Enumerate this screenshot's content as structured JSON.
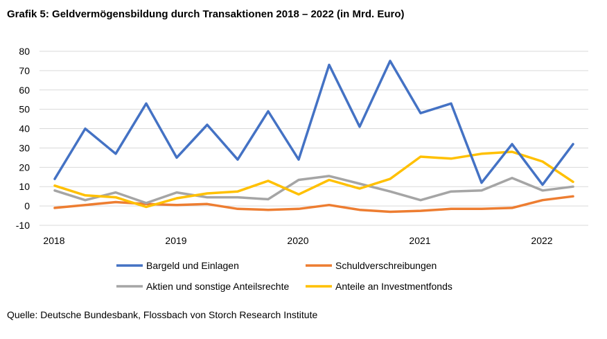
{
  "title": "Grafik 5: Geldvermögensbildung durch Transaktionen 2018 – 2022 (in Mrd. Euro)",
  "source": "Quelle: Deutsche Bundesbank, Flossbach von Storch Research Institute",
  "chart_data": {
    "type": "line",
    "title": "Grafik 5: Geldvermögensbildung durch Transaktionen 2018 – 2022 (in Mrd. Euro)",
    "xlabel": "",
    "ylabel": "",
    "ylim": [
      -10,
      80
    ],
    "yticks": [
      -10,
      0,
      10,
      20,
      30,
      40,
      50,
      60,
      70,
      80
    ],
    "x_tick_labels": [
      {
        "label": "2018",
        "index": 0
      },
      {
        "label": "2019",
        "index": 4
      },
      {
        "label": "2020",
        "index": 8
      },
      {
        "label": "2021",
        "index": 12
      },
      {
        "label": "2022",
        "index": 16
      }
    ],
    "x": [
      "2018 Q1",
      "2018 Q2",
      "2018 Q3",
      "2018 Q4",
      "2019 Q1",
      "2019 Q2",
      "2019 Q3",
      "2019 Q4",
      "2020 Q1",
      "2020 Q2",
      "2020 Q3",
      "2020 Q4",
      "2021 Q1",
      "2021 Q2",
      "2021 Q3",
      "2021 Q4",
      "2022 Q1",
      "2022 Q2"
    ],
    "grid": true,
    "legend_position": "bottom",
    "series": [
      {
        "name": "Bargeld und Einlagen",
        "color": "#4472C4",
        "values": [
          14,
          40,
          27,
          53,
          25,
          42,
          24,
          49,
          24,
          73,
          41,
          75,
          48,
          53,
          12,
          32,
          11,
          32
        ]
      },
      {
        "name": "Schuldverschreibungen",
        "color": "#ED7D31",
        "values": [
          -1,
          0.5,
          2,
          1,
          0.5,
          1,
          -1.5,
          -2,
          -1.5,
          0.5,
          -2,
          -3,
          -2.5,
          -1.5,
          -1.5,
          -1,
          3,
          5
        ]
      },
      {
        "name": "Aktien und sonstige Anteilsrechte",
        "color": "#A5A5A5",
        "values": [
          8,
          3,
          7,
          1.5,
          7,
          4.5,
          4.5,
          3.5,
          13.5,
          15.5,
          11.5,
          7.5,
          3,
          7.5,
          8,
          14.5,
          8,
          10
        ]
      },
      {
        "name": "Anteile an Investmentfonds",
        "color": "#FFC000",
        "values": [
          10.5,
          5.5,
          4.5,
          -0.5,
          4,
          6.5,
          7.5,
          13,
          6,
          13.5,
          9,
          14,
          25.5,
          24.5,
          27,
          28,
          23,
          12.5
        ]
      }
    ]
  }
}
